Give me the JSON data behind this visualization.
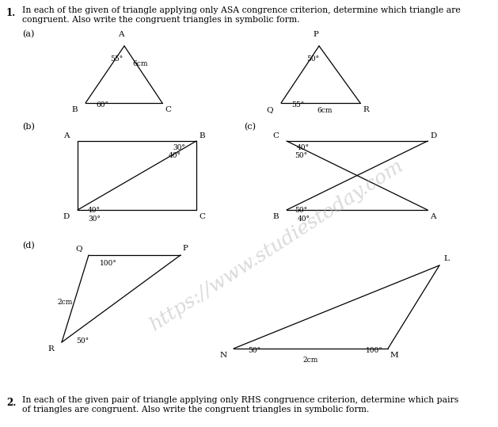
{
  "bg_color": "#ffffff",
  "line_color": "#000000",
  "watermark": "https://www.studiestoday.com",
  "q1_line1": "In each of the given of triangle applying only ASA congrence criterion, determine which triangle are",
  "q1_line2": "congruent. Also write the congruent triangles in symbolic form.",
  "q2_line1": "In each of the given pair of triangle applying only RHS congruence criterion, determine which pairs",
  "q2_line2": "of triangles are congruent. Also write the congruent triangles in symbolic form."
}
